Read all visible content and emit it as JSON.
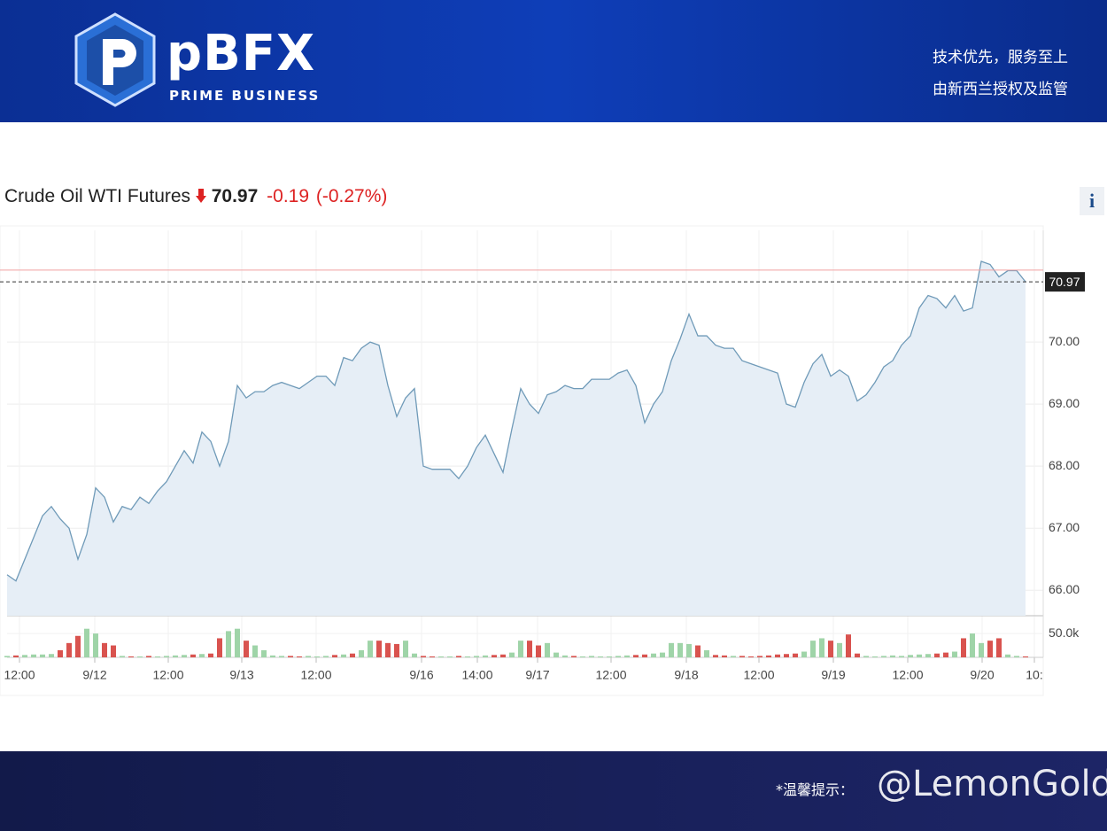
{
  "header": {
    "logo": "pBFX",
    "logo_sub": "PRIME BUSINESS",
    "slogan": [
      "技术优先，服务至上",
      "由新西兰授权及监管"
    ]
  },
  "chart_data": {
    "type": "line",
    "title": "Crude Oil WTI Futures",
    "last": 70.97,
    "change": -0.19,
    "change_pct": {
      "value": -0.27,
      "label": "(-0.27%)"
    },
    "prev_close": 71.16,
    "info": "i",
    "color": "#6f9ab8",
    "fill": "#e6eef6",
    "up_color": "#9fd4a8",
    "down_color": "#d9534f",
    "prev_close_color": "#f0a0a0",
    "values": [
      66.25,
      66.15,
      66.5,
      66.85,
      67.2,
      67.35,
      67.15,
      67.0,
      66.5,
      66.9,
      67.65,
      67.5,
      67.1,
      67.35,
      67.3,
      67.5,
      67.4,
      67.6,
      67.75,
      68.0,
      68.25,
      68.05,
      68.55,
      68.4,
      68.0,
      68.4,
      69.3,
      69.1,
      69.2,
      69.2,
      69.3,
      69.35,
      69.3,
      69.25,
      69.35,
      69.45,
      69.45,
      69.3,
      69.75,
      69.7,
      69.9,
      70.0,
      69.95,
      69.3,
      68.8,
      69.1,
      69.25,
      68.0,
      67.95,
      67.95,
      67.95,
      67.8,
      68.0,
      68.3,
      68.5,
      68.2,
      67.9,
      68.6,
      69.25,
      69.0,
      68.85,
      69.15,
      69.2,
      69.3,
      69.25,
      69.25,
      69.4,
      69.4,
      69.4,
      69.5,
      69.55,
      69.3,
      68.7,
      69.0,
      69.2,
      69.7,
      70.05,
      70.45,
      70.1,
      70.1,
      69.95,
      69.9,
      69.9,
      69.7,
      69.65,
      69.6,
      69.55,
      69.5,
      69.0,
      68.95,
      69.35,
      69.65,
      69.8,
      69.45,
      69.55,
      69.45,
      69.05,
      69.15,
      69.35,
      69.6,
      69.7,
      69.95,
      70.1,
      70.55,
      70.75,
      70.7,
      70.55,
      70.75,
      70.5,
      70.55,
      71.3,
      71.25,
      71.05,
      71.15,
      71.15,
      70.97
    ],
    "volume": [
      3000,
      4000,
      5000,
      6000,
      6000,
      7000,
      15000,
      30000,
      45000,
      60000,
      50000,
      30000,
      25000,
      3000,
      2000,
      2000,
      3000,
      2000,
      3000,
      4000,
      5000,
      6000,
      7000,
      8000,
      40000,
      55000,
      60000,
      35000,
      25000,
      15000,
      4000,
      3000,
      3000,
      2000,
      3000,
      2000,
      3000,
      5000,
      6000,
      8000,
      15000,
      35000,
      35000,
      30000,
      28000,
      35000,
      8000,
      3000,
      2000,
      2000,
      2000,
      3000,
      2000,
      3000,
      4000,
      5000,
      6000,
      10000,
      35000,
      35000,
      25000,
      30000,
      10000,
      4000,
      3000,
      2000,
      3000,
      2000,
      2000,
      3000,
      4000,
      5000,
      6000,
      8000,
      10000,
      30000,
      30000,
      28000,
      25000,
      15000,
      5000,
      4000,
      3000,
      3000,
      2000,
      3000,
      4000,
      6000,
      7000,
      8000,
      12000,
      35000,
      40000,
      35000,
      30000,
      48000,
      8000,
      3000,
      2000,
      3000,
      4000,
      3000,
      5000,
      6000,
      7000,
      8000,
      10000,
      12000,
      40000,
      50000,
      30000,
      35000,
      40000,
      6000,
      3000,
      2000
    ],
    "vlim": [
      0,
      78000
    ],
    "vticks": [
      {
        "value": 50000,
        "label": "50.0k"
      }
    ],
    "xlim": [
      0,
      117
    ],
    "xticks": [
      {
        "value": 1.4,
        "label": "12:00"
      },
      {
        "value": 9.9,
        "label": "9/12"
      },
      {
        "value": 18.2,
        "label": "12:00"
      },
      {
        "value": 26.5,
        "label": "9/13"
      },
      {
        "value": 34.9,
        "label": "12:00"
      },
      {
        "value": 46.8,
        "label": "9/16"
      },
      {
        "value": 53.1,
        "label": "14:00"
      },
      {
        "value": 59.9,
        "label": "9/17"
      },
      {
        "value": 68.2,
        "label": "12:00"
      },
      {
        "value": 76.7,
        "label": "9/18"
      },
      {
        "value": 84.9,
        "label": "12:00"
      },
      {
        "value": 93.3,
        "label": "9/19"
      },
      {
        "value": 101.7,
        "label": "12:00"
      },
      {
        "value": 110.1,
        "label": "9/20"
      },
      {
        "value": 116,
        "label": "10:"
      }
    ],
    "ylim": [
      65.59,
      71.8
    ],
    "yticks": [
      {
        "value": 66,
        "label": "66.00"
      },
      {
        "value": 67,
        "label": "67.00"
      },
      {
        "value": 68,
        "label": "68.00"
      },
      {
        "value": 69,
        "label": "69.00"
      },
      {
        "value": 70,
        "label": "70.00"
      }
    ],
    "grid": true
  },
  "footer": {
    "notice": "*温馨提示：",
    "watermark": "@LemonGold"
  }
}
